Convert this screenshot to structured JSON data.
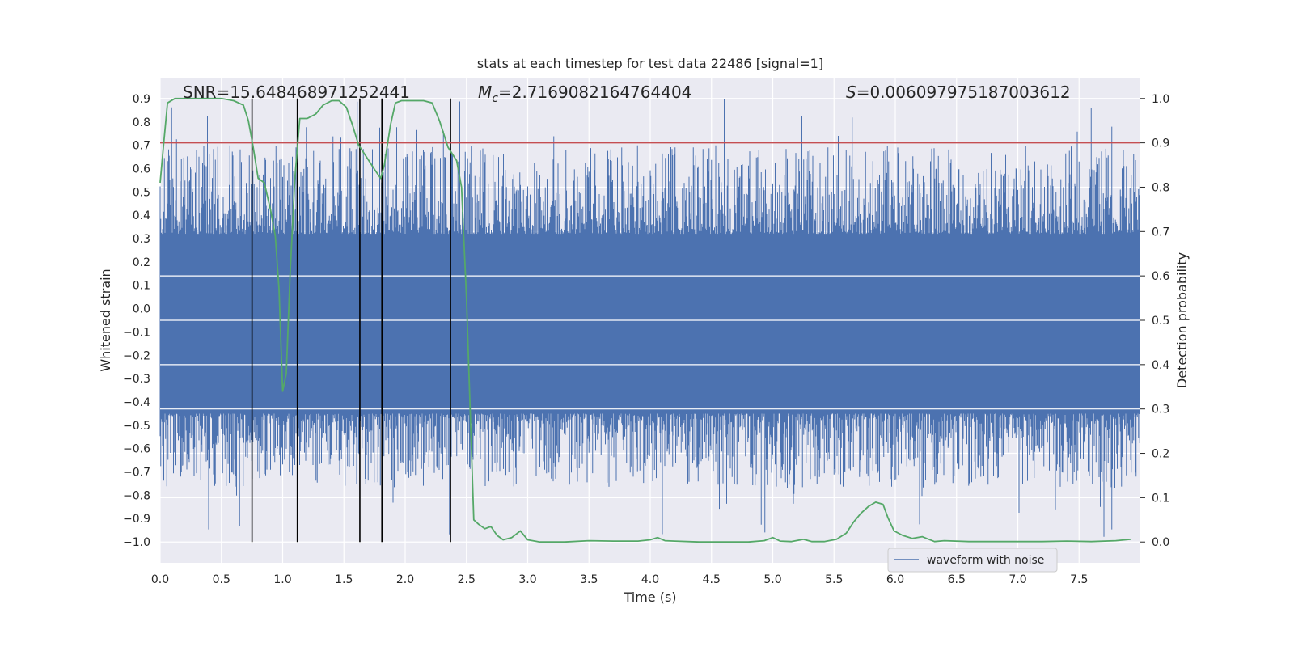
{
  "chart_data": {
    "type": "line",
    "title": "stats at each timestep for test data 22486 [signal=1]",
    "xlabel": "Time (s)",
    "ylabel_left": "Whitened strain",
    "ylabel_right": "Detection probability",
    "xlim": [
      0.0,
      8.0
    ],
    "ylim_left": [
      -1.09,
      0.99
    ],
    "ylim_right": [
      -0.047,
      1.047
    ],
    "x_ticks": [
      0.0,
      0.5,
      1.0,
      1.5,
      2.0,
      2.5,
      3.0,
      3.5,
      4.0,
      4.5,
      5.0,
      5.5,
      6.0,
      6.5,
      7.0,
      7.5
    ],
    "x_tick_labels": [
      "0.0",
      "0.5",
      "1.0",
      "1.5",
      "2.0",
      "2.5",
      "3.0",
      "3.5",
      "4.0",
      "4.5",
      "5.0",
      "5.5",
      "6.0",
      "6.5",
      "7.0",
      "7.5"
    ],
    "y_left_ticks": [
      0.9,
      0.8,
      0.7,
      0.6,
      0.5,
      0.4,
      0.3,
      0.2,
      0.1,
      0.0,
      -0.1,
      -0.2,
      -0.3,
      -0.4,
      -0.5,
      -0.6,
      -0.7,
      -0.8,
      -0.9,
      -1.0
    ],
    "y_left_tick_labels": [
      "0.9",
      "0.8",
      "0.7",
      "0.6",
      "0.5",
      "0.4",
      "0.3",
      "0.2",
      "0.1",
      "0.0",
      "−0.1",
      "−0.2",
      "−0.3",
      "−0.4",
      "−0.5",
      "−0.6",
      "−0.7",
      "−0.8",
      "−0.9",
      "−1.0"
    ],
    "y_right_ticks": [
      1.0,
      0.9,
      0.8,
      0.7,
      0.6,
      0.5,
      0.4,
      0.3,
      0.2,
      0.1,
      0.0
    ],
    "y_right_tick_labels": [
      "1.0",
      "0.9",
      "0.8",
      "0.7",
      "0.6",
      "0.5",
      "0.4",
      "0.3",
      "0.2",
      "0.1",
      "0.0"
    ],
    "annotations": {
      "snr": "SNR=15.648468971252441",
      "mc_symbol": "M",
      "mc_subscript": "c",
      "mc_value": "=2.7169082164764404",
      "s_symbol": "S",
      "s_value": "=0.006097975187003612"
    },
    "threshold": {
      "value": 0.9,
      "axis": "right",
      "color": "#c44e52"
    },
    "vertical_markers": [
      0.75,
      1.12,
      1.63,
      1.81,
      2.37
    ],
    "legend": {
      "label": "waveform with noise",
      "placement": "lower-right"
    },
    "series": [
      {
        "name": "waveform with noise",
        "axis": "left",
        "color": "#4c72b0",
        "description": "whitened strain noise, core band about -0.45..0.32 with spikes up to 0.9 and down to -1.0"
      },
      {
        "name": "detection probability",
        "axis": "right",
        "color": "#55a868",
        "x": [
          0.0,
          0.03,
          0.06,
          0.12,
          0.2,
          0.3,
          0.4,
          0.5,
          0.6,
          0.68,
          0.72,
          0.76,
          0.8,
          0.85,
          0.9,
          0.94,
          0.97,
          1.0,
          1.03,
          1.06,
          1.1,
          1.14,
          1.2,
          1.27,
          1.33,
          1.4,
          1.46,
          1.52,
          1.57,
          1.62,
          1.68,
          1.75,
          1.8,
          1.83,
          1.88,
          1.92,
          1.97,
          2.03,
          2.1,
          2.15,
          2.22,
          2.28,
          2.35,
          2.42,
          2.46,
          2.5,
          2.53,
          2.56,
          2.6,
          2.65,
          2.7,
          2.75,
          2.8,
          2.87,
          2.94,
          3.0,
          3.1,
          3.3,
          3.5,
          3.7,
          3.9,
          4.0,
          4.06,
          4.12,
          4.2,
          4.4,
          4.6,
          4.8,
          4.93,
          5.0,
          5.06,
          5.15,
          5.25,
          5.32,
          5.42,
          5.52,
          5.6,
          5.66,
          5.72,
          5.78,
          5.84,
          5.9,
          5.94,
          5.99,
          6.06,
          6.14,
          6.22,
          6.32,
          6.4,
          6.6,
          6.8,
          7.0,
          7.2,
          7.4,
          7.6,
          7.8,
          7.92
        ],
        "y": [
          0.81,
          0.9,
          0.99,
          1.0,
          1.0,
          1.0,
          1.0,
          1.0,
          0.995,
          0.985,
          0.95,
          0.89,
          0.82,
          0.81,
          0.75,
          0.69,
          0.57,
          0.34,
          0.38,
          0.6,
          0.82,
          0.955,
          0.955,
          0.965,
          0.985,
          0.995,
          0.995,
          0.98,
          0.94,
          0.895,
          0.87,
          0.84,
          0.82,
          0.85,
          0.94,
          0.99,
          0.995,
          0.995,
          0.995,
          0.995,
          0.99,
          0.95,
          0.89,
          0.86,
          0.8,
          0.55,
          0.3,
          0.05,
          0.04,
          0.03,
          0.035,
          0.015,
          0.005,
          0.01,
          0.025,
          0.005,
          0.0,
          0.0,
          0.003,
          0.002,
          0.002,
          0.005,
          0.01,
          0.003,
          0.002,
          0.0,
          0.0,
          0.0,
          0.003,
          0.01,
          0.002,
          0.001,
          0.006,
          0.001,
          0.001,
          0.006,
          0.02,
          0.045,
          0.065,
          0.08,
          0.09,
          0.085,
          0.055,
          0.025,
          0.015,
          0.008,
          0.012,
          0.001,
          0.003,
          0.001,
          0.001,
          0.001,
          0.001,
          0.002,
          0.001,
          0.003,
          0.006
        ]
      }
    ]
  }
}
